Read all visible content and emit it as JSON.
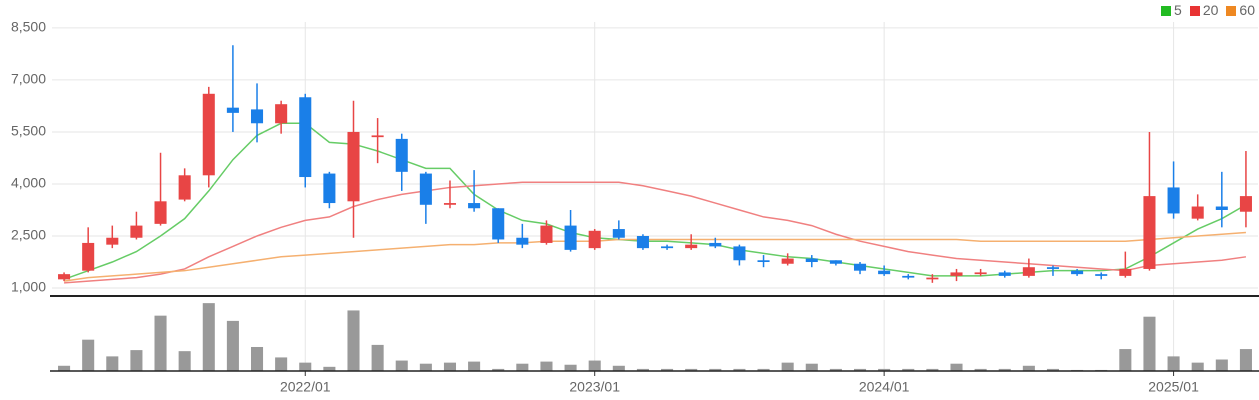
{
  "chart_data": {
    "type": "candlestick",
    "categories": [
      null,
      null,
      null,
      null,
      null,
      null,
      null,
      null,
      null,
      null,
      "2022/01",
      null,
      null,
      null,
      null,
      null,
      null,
      null,
      null,
      null,
      null,
      null,
      "2023/01",
      null,
      null,
      null,
      null,
      null,
      null,
      null,
      null,
      null,
      null,
      null,
      "2024/01",
      null,
      null,
      null,
      null,
      null,
      null,
      null,
      null,
      null,
      null,
      null,
      "2025/01",
      null,
      null,
      null
    ],
    "open": [
      1250,
      1500,
      2250,
      2450,
      2850,
      3550,
      4250,
      6200,
      6150,
      5750,
      6500,
      4300,
      3500,
      5350,
      5300,
      4300,
      3400,
      3450,
      3300,
      2450,
      2300,
      2800,
      2150,
      2700,
      2500,
      2200,
      2150,
      2300,
      2200,
      1800,
      1700,
      1850,
      1800,
      1700,
      1500,
      1350,
      1250,
      1350,
      1400,
      1450,
      1350,
      1600,
      1500,
      1400,
      1350,
      1550,
      3900,
      3000,
      3350,
      3200
    ],
    "high": [
      1450,
      2750,
      2800,
      3200,
      4900,
      4450,
      6800,
      8000,
      6900,
      6400,
      6600,
      4350,
      6400,
      5900,
      5450,
      4350,
      4100,
      4400,
      3300,
      2850,
      2950,
      3250,
      2700,
      2950,
      2550,
      2250,
      2550,
      2450,
      2250,
      1950,
      2000,
      1950,
      1800,
      1750,
      1650,
      1400,
      1400,
      1550,
      1550,
      1500,
      1850,
      1650,
      1550,
      1450,
      2050,
      5500,
      4650,
      3700,
      4350,
      4950
    ],
    "low": [
      1200,
      1450,
      2150,
      2400,
      2800,
      3500,
      3900,
      5500,
      5200,
      5450,
      3900,
      3300,
      2450,
      4600,
      3800,
      2850,
      3300,
      3200,
      2300,
      2150,
      2250,
      2050,
      2100,
      2400,
      2100,
      2100,
      2100,
      2150,
      1650,
      1600,
      1650,
      1600,
      1650,
      1400,
      1350,
      1250,
      1150,
      1200,
      1350,
      1300,
      1300,
      1350,
      1350,
      1250,
      1300,
      1500,
      3000,
      2950,
      2750,
      2750
    ],
    "close": [
      1400,
      2300,
      2450,
      2800,
      3500,
      4250,
      6600,
      6050,
      5750,
      6300,
      4200,
      3450,
      5500,
      5400,
      4350,
      3400,
      3450,
      3300,
      2400,
      2250,
      2800,
      2100,
      2650,
      2450,
      2150,
      2150,
      2250,
      2200,
      1800,
      1750,
      1850,
      1750,
      1700,
      1500,
      1400,
      1300,
      1300,
      1450,
      1450,
      1350,
      1600,
      1550,
      1400,
      1350,
      1550,
      3650,
      3150,
      3350,
      3250,
      3650
    ],
    "up_color": "#e84545",
    "down_color": "#1a7fe8",
    "series": [
      {
        "name": "5",
        "color": "#22bb22",
        "line_color": "#66cc66",
        "values": [
          1250,
          1500,
          1750,
          2050,
          2500,
          3000,
          3800,
          4700,
          5400,
          5750,
          5750,
          5200,
          5150,
          4950,
          4700,
          4450,
          4450,
          3700,
          3250,
          2950,
          2850,
          2600,
          2450,
          2400,
          2350,
          2350,
          2300,
          2250,
          2100,
          2000,
          1900,
          1850,
          1750,
          1650,
          1550,
          1450,
          1350,
          1350,
          1350,
          1400,
          1450,
          1500,
          1500,
          1500,
          1550,
          1900,
          2300,
          2700,
          3000,
          3400
        ]
      },
      {
        "name": "20",
        "color": "#e83333",
        "line_color": "#f08080",
        "values": [
          1150,
          1200,
          1250,
          1300,
          1400,
          1550,
          1900,
          2200,
          2500,
          2750,
          2950,
          3050,
          3350,
          3550,
          3700,
          3800,
          3900,
          3950,
          4000,
          4050,
          4050,
          4050,
          4050,
          4050,
          3950,
          3800,
          3650,
          3450,
          3250,
          3050,
          2950,
          2800,
          2550,
          2350,
          2200,
          2050,
          1950,
          1850,
          1800,
          1750,
          1700,
          1650,
          1600,
          1550,
          1500,
          1650,
          1700,
          1750,
          1800,
          1900
        ]
      },
      {
        "name": "60",
        "color": "#ee8822",
        "line_color": "#f5b070",
        "values": [
          1200,
          1300,
          1350,
          1400,
          1450,
          1500,
          1600,
          1700,
          1800,
          1900,
          1950,
          2000,
          2050,
          2100,
          2150,
          2200,
          2250,
          2250,
          2300,
          2300,
          2350,
          2350,
          2350,
          2400,
          2400,
          2400,
          2400,
          2400,
          2400,
          2400,
          2400,
          2400,
          2400,
          2400,
          2400,
          2400,
          2400,
          2400,
          2350,
          2350,
          2350,
          2350,
          2350,
          2350,
          2350,
          2400,
          2450,
          2500,
          2550,
          2600
        ]
      }
    ],
    "ylim": [
      770,
      8670
    ],
    "yticks": [
      {
        "value": 1000,
        "label": "1,000"
      },
      {
        "value": 2500,
        "label": "2,500"
      },
      {
        "value": 4000,
        "label": "4,000"
      },
      {
        "value": 5500,
        "label": "5,500"
      },
      {
        "value": 7000,
        "label": "7,000"
      },
      {
        "value": 8500,
        "label": "8,500"
      }
    ],
    "grid": true,
    "volume": {
      "color": "#999999",
      "ylim": [
        0,
        68
      ],
      "values": [
        5,
        30,
        14,
        20,
        53,
        19,
        65,
        48,
        23,
        13,
        8,
        4,
        58,
        25,
        10,
        7,
        8,
        9,
        2,
        7,
        9,
        6,
        10,
        5,
        2,
        2,
        2,
        2,
        2,
        2,
        8,
        7,
        2,
        2,
        2,
        2,
        2,
        7,
        2,
        2,
        5,
        2,
        1,
        1,
        21,
        52,
        14,
        8,
        11,
        21
      ]
    }
  }
}
